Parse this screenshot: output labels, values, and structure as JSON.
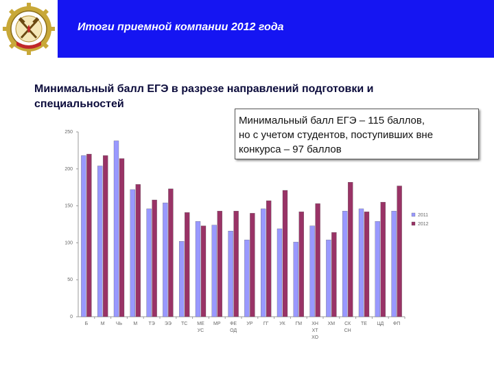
{
  "header": {
    "title": "Итоги приемной компании 2012 года",
    "background": "#1515f2"
  },
  "subtitle": {
    "line1": "Минимальный балл ЕГЭ в разрезе направлений подготовки и",
    "line2": "специальностей"
  },
  "note": {
    "line1": "Минимальный балл ЕГЭ – 115 баллов,",
    "line2": "но с учетом студентов, поступивших вне",
    "line3": "конкурса – 97 баллов"
  },
  "colors": {
    "series_2011": "#9999ff",
    "series_2012": "#993366"
  },
  "chart_data": {
    "type": "bar",
    "title": "",
    "xlabel": "",
    "ylabel": "",
    "ylim": [
      0,
      250
    ],
    "yticks": [
      "0",
      "50",
      "100",
      "150",
      "200",
      "250"
    ],
    "grid": false,
    "legend_position": "right",
    "categories": [
      [
        "Б"
      ],
      [
        "М"
      ],
      [
        "ЧЬ"
      ],
      [
        "М"
      ],
      [
        "ТЭ"
      ],
      [
        "ЭЭ"
      ],
      [
        "ТС"
      ],
      [
        "МЕ",
        "УС"
      ],
      [
        "МР"
      ],
      [
        "ФЕ",
        "ОД"
      ],
      [
        "УР"
      ],
      [
        "ГГ"
      ],
      [
        "УК"
      ],
      [
        "ГМ"
      ],
      [
        "ХН",
        "ХТ",
        "ХО"
      ],
      [
        "ХМ"
      ],
      [
        "СК",
        "СН"
      ],
      [
        "ТЕ"
      ],
      [
        "ЦД"
      ],
      [
        "ФП"
      ]
    ],
    "series": [
      {
        "name": "2011",
        "values": [
          218,
          204,
          238,
          172,
          146,
          154,
          102,
          129,
          124,
          116,
          104,
          146,
          119,
          101,
          123,
          104,
          143,
          146,
          129,
          143
        ]
      },
      {
        "name": "2012",
        "values": [
          220,
          218,
          214,
          179,
          158,
          173,
          141,
          123,
          143,
          143,
          140,
          157,
          171,
          142,
          153,
          114,
          182,
          142,
          155,
          177
        ]
      }
    ]
  }
}
